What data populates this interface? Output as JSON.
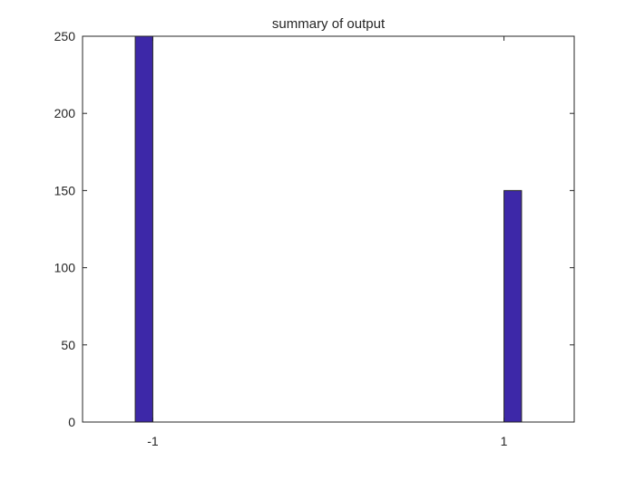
{
  "chart_data": {
    "type": "bar",
    "title": "summary of output",
    "xlabel": "",
    "ylabel": "",
    "x": [
      -1.05,
      -1.0,
      1.0,
      1.05
    ],
    "values": [
      250,
      0,
      0,
      150
    ],
    "xlim": [
      -1.4,
      1.4
    ],
    "ylim": [
      0,
      250
    ],
    "xticks": [
      -1,
      1
    ],
    "xtick_labels": [
      "-1",
      "1"
    ],
    "yticks": [
      0,
      50,
      100,
      150,
      200,
      250
    ],
    "ytick_labels": [
      "0",
      "50",
      "100",
      "150",
      "200",
      "250"
    ],
    "bar_color": "#3d28a8",
    "bar_edge_color": "#262626",
    "grid": false,
    "legend": "none"
  }
}
